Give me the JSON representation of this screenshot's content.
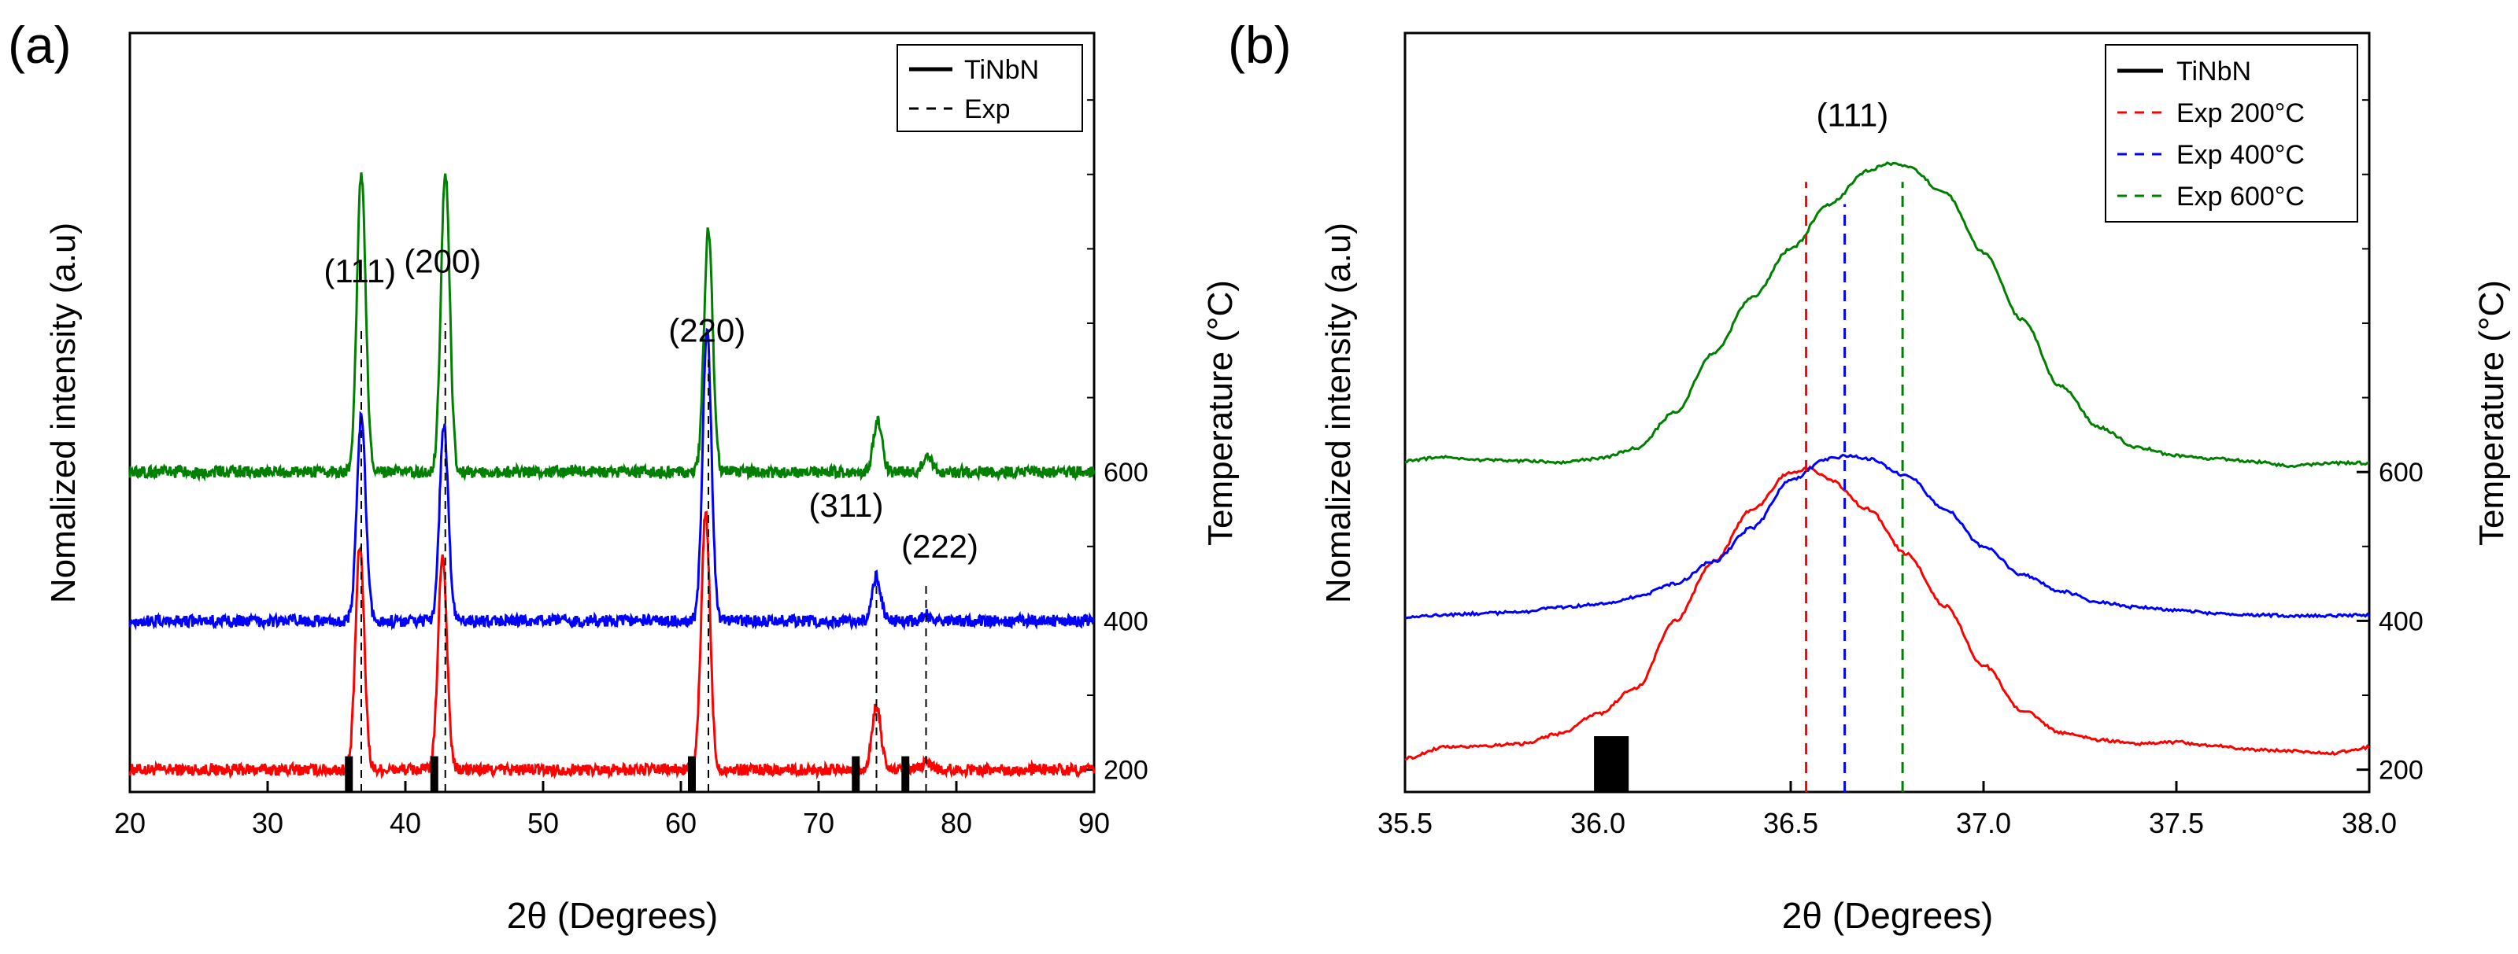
{
  "chart_data": [
    {
      "type": "line",
      "panel_label": "(a)",
      "title": "",
      "xlabel": "2θ (Degrees)",
      "ylabel": "Nomalized intensity (a.u)",
      "ylabel_right": "Temperature (°C)",
      "xlim": [
        20,
        90
      ],
      "xticks": [
        20,
        30,
        40,
        50,
        60,
        70,
        80,
        90
      ],
      "ylim_right": [
        170,
        1190
      ],
      "yticks_right": [
        200,
        400,
        600
      ],
      "minor_ticks_right": [
        300,
        500,
        700,
        800,
        900,
        1000,
        1100
      ],
      "legend": {
        "position": "top-right",
        "entries": [
          {
            "label": "TiNbN",
            "style": "solid-black"
          },
          {
            "label": "Exp",
            "style": "dashed-black"
          }
        ]
      },
      "series": [
        {
          "name": "200°C",
          "color": "#ff0000",
          "baseline": 200,
          "peaks": [
            [
              36.7,
              300
            ],
            [
              42.7,
              290
            ],
            [
              61.8,
              345
            ],
            [
              74.2,
              85
            ],
            [
              77.9,
              10
            ]
          ],
          "width": 0.45
        },
        {
          "name": "400°C",
          "color": "#0000ff",
          "baseline": 400,
          "peaks": [
            [
              36.8,
              275
            ],
            [
              42.8,
              262
            ],
            [
              61.9,
              392
            ],
            [
              74.2,
              60
            ],
            [
              77.9,
              8
            ]
          ],
          "width": 0.45
        },
        {
          "name": "600°C",
          "color": "#008000",
          "baseline": 600,
          "peaks": [
            [
              36.8,
              400
            ],
            [
              42.9,
              405
            ],
            [
              62.0,
              325
            ],
            [
              74.3,
              70
            ],
            [
              77.9,
              20
            ]
          ],
          "width": 0.45
        }
      ],
      "reference_bars": {
        "label": "TiNbN",
        "x": [
          35.9,
          42.1,
          60.8,
          72.7,
          76.3
        ],
        "height": 48
      },
      "exp_lines": {
        "label": "Exp",
        "x": [
          36.8,
          42.9,
          62.0,
          74.2,
          77.8
        ],
        "top": [
          790,
          800,
          760,
          450,
          450
        ]
      },
      "annotations": [
        {
          "text": "(111)",
          "x": 36.7,
          "y": 855
        },
        {
          "text": "(200)",
          "x": 42.7,
          "y": 868
        },
        {
          "text": "(220)",
          "x": 61.9,
          "y": 775
        },
        {
          "text": "(311)",
          "x": 72.0,
          "y": 540
        },
        {
          "text": "(222)",
          "x": 78.8,
          "y": 485
        }
      ]
    },
    {
      "type": "line",
      "panel_label": "(b)",
      "title": "",
      "xlabel": "2θ (Degrees)",
      "ylabel": "Nomalized intensity (a.u)",
      "ylabel_right": "Temperature (°C)",
      "xlim": [
        35.5,
        38.0
      ],
      "xticks": [
        35.5,
        36.0,
        36.5,
        37.0,
        37.5,
        38.0
      ],
      "ylim_right": [
        170,
        1190
      ],
      "yticks_right": [
        200,
        400,
        600
      ],
      "minor_ticks_right": [
        300,
        500,
        700,
        800,
        900,
        1000,
        1100
      ],
      "legend": {
        "position": "top-right",
        "entries": [
          {
            "label": "TiNbN",
            "style": "solid-black",
            "color": "#000000"
          },
          {
            "label": "Exp 200°C",
            "style": "dashed",
            "color": "#ff0000"
          },
          {
            "label": "Exp 400°C",
            "style": "dashed",
            "color": "#0000ff"
          },
          {
            "label": "Exp 600°C",
            "style": "dashed",
            "color": "#008000"
          }
        ]
      },
      "series": [
        {
          "name": "200°C",
          "color": "#ff0000",
          "points": [
            [
              35.5,
              215
            ],
            [
              35.6,
              230
            ],
            [
              35.7,
              232
            ],
            [
              35.8,
              235
            ],
            [
              35.9,
              248
            ],
            [
              36.0,
              275
            ],
            [
              36.1,
              310
            ],
            [
              36.2,
              400
            ],
            [
              36.3,
              480
            ],
            [
              36.4,
              550
            ],
            [
              36.5,
              600
            ],
            [
              36.55,
              605
            ],
            [
              36.6,
              590
            ],
            [
              36.7,
              550
            ],
            [
              36.8,
              490
            ],
            [
              36.9,
              420
            ],
            [
              37.0,
              340
            ],
            [
              37.1,
              280
            ],
            [
              37.2,
              250
            ],
            [
              37.3,
              240
            ],
            [
              37.4,
              235
            ],
            [
              37.5,
              237
            ],
            [
              37.6,
              232
            ],
            [
              37.7,
              227
            ],
            [
              37.8,
              225
            ],
            [
              37.9,
              222
            ],
            [
              38.0,
              230
            ]
          ]
        },
        {
          "name": "400°C",
          "color": "#0000ff",
          "points": [
            [
              35.5,
              405
            ],
            [
              35.6,
              408
            ],
            [
              35.7,
              410
            ],
            [
              35.8,
              412
            ],
            [
              35.9,
              418
            ],
            [
              36.0,
              422
            ],
            [
              36.1,
              432
            ],
            [
              36.2,
              450
            ],
            [
              36.3,
              480
            ],
            [
              36.4,
              525
            ],
            [
              36.5,
              590
            ],
            [
              36.6,
              618
            ],
            [
              36.65,
              622
            ],
            [
              36.7,
              618
            ],
            [
              36.8,
              595
            ],
            [
              36.9,
              550
            ],
            [
              37.0,
              500
            ],
            [
              37.1,
              462
            ],
            [
              37.2,
              440
            ],
            [
              37.3,
              425
            ],
            [
              37.4,
              418
            ],
            [
              37.5,
              414
            ],
            [
              37.6,
              410
            ],
            [
              37.7,
              408
            ],
            [
              37.8,
              407
            ],
            [
              37.9,
              407
            ],
            [
              38.0,
              408
            ]
          ]
        },
        {
          "name": "600°C",
          "color": "#008000",
          "points": [
            [
              35.5,
              615
            ],
            [
              35.6,
              620
            ],
            [
              35.7,
              616
            ],
            [
              35.8,
              615
            ],
            [
              35.9,
              613
            ],
            [
              36.0,
              618
            ],
            [
              36.1,
              632
            ],
            [
              36.2,
              680
            ],
            [
              36.3,
              760
            ],
            [
              36.4,
              835
            ],
            [
              36.5,
              900
            ],
            [
              36.6,
              960
            ],
            [
              36.7,
              1005
            ],
            [
              36.75,
              1015
            ],
            [
              36.8,
              1012
            ],
            [
              36.9,
              975
            ],
            [
              37.0,
              895
            ],
            [
              37.1,
              805
            ],
            [
              37.2,
              715
            ],
            [
              37.3,
              660
            ],
            [
              37.4,
              633
            ],
            [
              37.5,
              622
            ],
            [
              37.6,
              618
            ],
            [
              37.7,
              614
            ],
            [
              37.8,
              608
            ],
            [
              37.9,
              612
            ],
            [
              38.0,
              612
            ]
          ]
        }
      ],
      "reference_bars": {
        "label": "TiNbN",
        "x_range": [
          35.99,
          36.08
        ],
        "top": 245
      },
      "exp_lines": [
        {
          "label": "Exp 200°C",
          "x": 36.54,
          "color": "#ff0000",
          "top": 990
        },
        {
          "label": "Exp 400°C",
          "x": 36.64,
          "color": "#0000ff",
          "top": 960
        },
        {
          "label": "Exp 600°C",
          "x": 36.79,
          "color": "#008000",
          "top": 990
        }
      ],
      "annotations": [
        {
          "text": "(111)",
          "x": 36.66,
          "y": 1065
        }
      ]
    }
  ]
}
